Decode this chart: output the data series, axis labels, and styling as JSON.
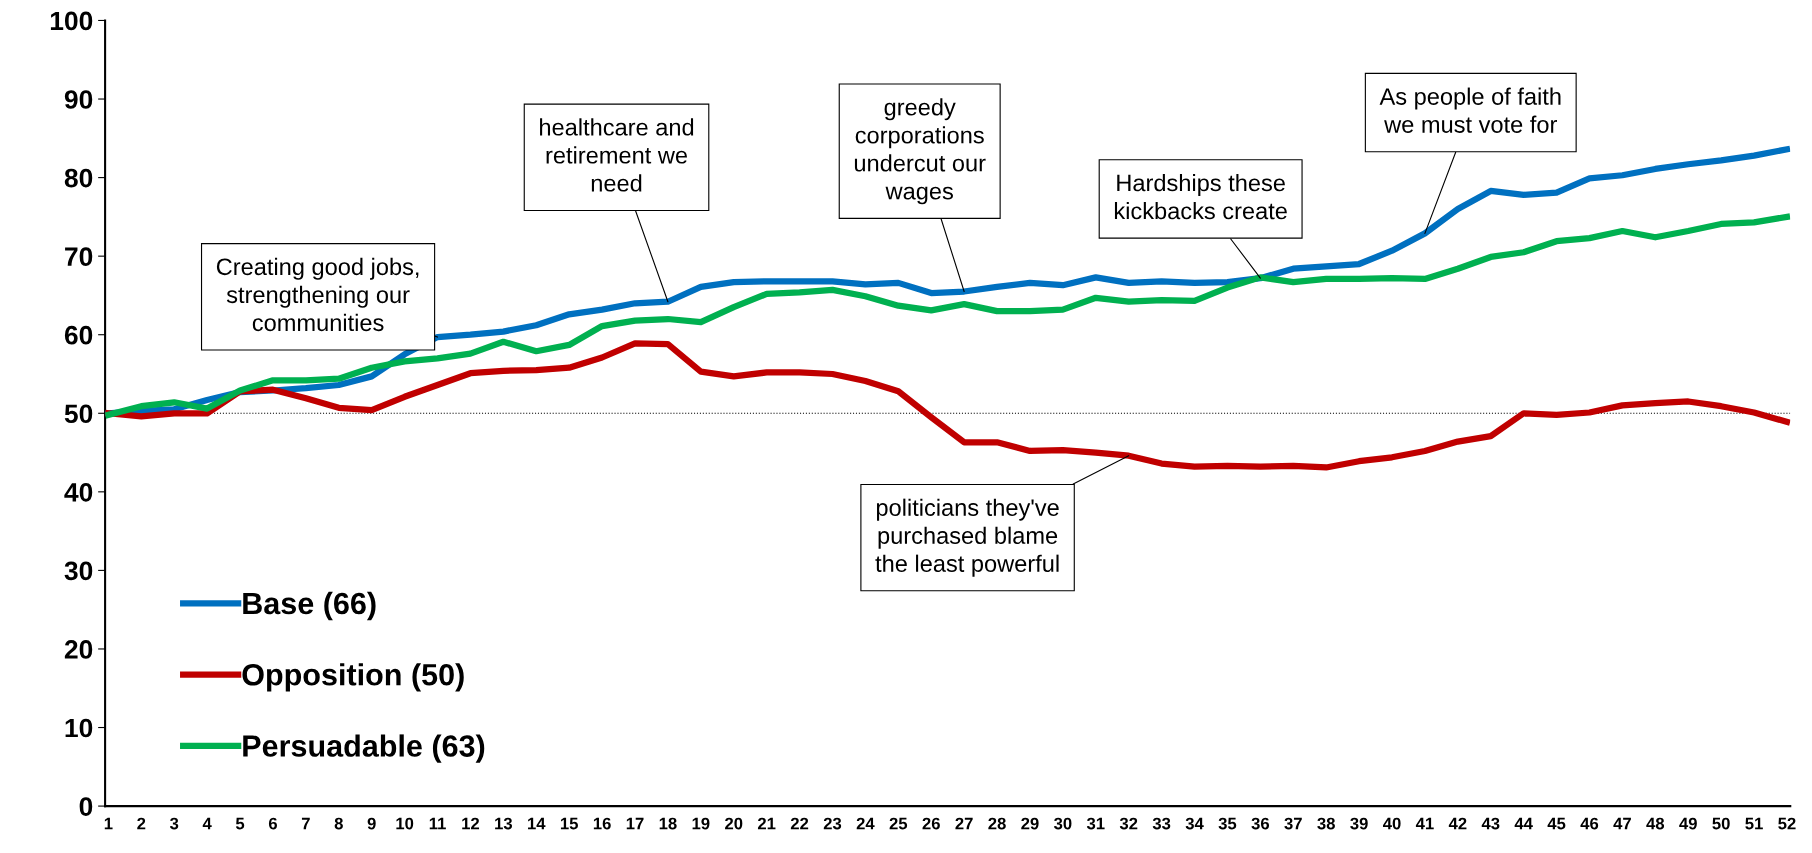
{
  "chart_data": {
    "type": "line",
    "categories": [
      "1",
      "2",
      "3",
      "4",
      "5",
      "6",
      "7",
      "8",
      "9",
      "10",
      "11",
      "12",
      "13",
      "14",
      "15",
      "16",
      "17",
      "18",
      "19",
      "20",
      "21",
      "22",
      "23",
      "24",
      "25",
      "26",
      "27",
      "28",
      "29",
      "30",
      "31",
      "32",
      "33",
      "34",
      "35",
      "36",
      "37",
      "38",
      "39",
      "40",
      "41",
      "42",
      "43",
      "44",
      "45",
      "46",
      "47",
      "48",
      "49",
      "50",
      "51",
      "52"
    ],
    "series": [
      {
        "name": "Base (66)",
        "color": "#0070c0",
        "values": [
          50,
          50.3,
          50.5,
          51.7,
          52.7,
          52.9,
          53.2,
          53.6,
          54.7,
          57.5,
          59.7,
          60,
          60.4,
          61.2,
          62.6,
          63.2,
          64,
          64.2,
          66.1,
          66.7,
          66.8,
          66.8,
          66.8,
          66.4,
          66.6,
          65.3,
          65.5,
          66.1,
          66.6,
          66.3,
          67.3,
          66.6,
          66.8,
          66.6,
          66.7,
          67.2,
          68.4,
          68.7,
          69,
          70.7,
          72.9,
          76,
          78.3,
          77.8,
          78.1,
          79.9,
          80.3,
          81.1,
          81.7,
          82.2,
          82.8,
          83.6
        ]
      },
      {
        "name": "Opposition (50)",
        "color": "#c00000",
        "values": [
          50,
          49.6,
          50,
          50,
          52.8,
          53,
          51.9,
          50.7,
          50.4,
          52.1,
          53.6,
          55.1,
          55.4,
          55.5,
          55.8,
          57.1,
          58.9,
          58.8,
          55.3,
          54.7,
          55.2,
          55.2,
          55,
          54.1,
          52.8,
          49.5,
          46.3,
          46.3,
          45.2,
          45.3,
          45,
          44.6,
          43.6,
          43.2,
          43.3,
          43.2,
          43.3,
          43.1,
          43.9,
          44.4,
          45.2,
          46.4,
          47.1,
          50,
          49.8,
          50.1,
          51,
          51.3,
          51.5,
          50.9,
          50.1,
          48.9
        ]
      },
      {
        "name": "Persuadable (63)",
        "color": "#00b050",
        "values": [
          49.8,
          50.9,
          51.4,
          50.6,
          52.9,
          54.2,
          54.2,
          54.4,
          55.8,
          56.6,
          57,
          57.6,
          59.1,
          57.9,
          58.7,
          61.1,
          61.8,
          62,
          61.6,
          63.5,
          65.2,
          65.4,
          65.7,
          64.9,
          63.7,
          63.1,
          63.9,
          63,
          63,
          63.2,
          64.7,
          64.2,
          64.4,
          64.3,
          66,
          67.3,
          66.7,
          67.1,
          67.1,
          67.2,
          67.1,
          68.4,
          69.9,
          70.5,
          71.9,
          72.3,
          73.2,
          72.4,
          73.2,
          74.1,
          74.3,
          75
        ]
      }
    ],
    "ylim": [
      0,
      100
    ],
    "yticks": [
      0,
      10,
      20,
      30,
      40,
      50,
      60,
      70,
      80,
      90,
      100
    ],
    "ref_lines": [
      {
        "axis": "y",
        "value": 50,
        "color": "#000000",
        "line_style": "dotted"
      }
    ],
    "annotations": [
      {
        "text": "Creating good jobs,\nstrengthening our\ncommunities",
        "x": "11",
        "y": 59.7
      },
      {
        "text": "healthcare and\nretirement we\nneed",
        "x": "18",
        "y": 64.2
      },
      {
        "text": "greedy\ncorporations\nundercut our\nwages",
        "x": "27",
        "y": 65.5
      },
      {
        "text": "politicians they've\npurchased blame\nthe least powerful",
        "x": "32",
        "y": 44.6
      },
      {
        "text": "Hardships these\nkickbacks create",
        "x": "36",
        "y": 67.2
      },
      {
        "text": "As people of faith\nwe must vote for",
        "x": "41",
        "y": 72.9
      }
    ],
    "legend": "bottom left",
    "grid": false,
    "marker": "none",
    "line_style": "solid"
  }
}
